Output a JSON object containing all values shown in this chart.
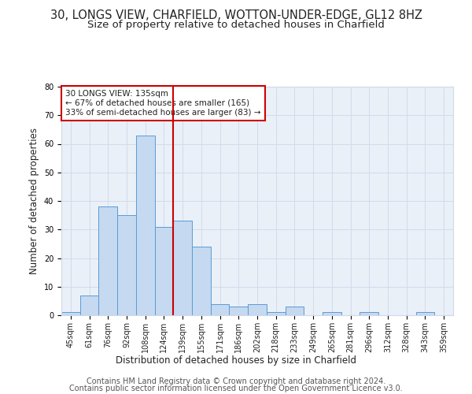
{
  "title_line1": "30, LONGS VIEW, CHARFIELD, WOTTON-UNDER-EDGE, GL12 8HZ",
  "title_line2": "Size of property relative to detached houses in Charfield",
  "xlabel": "Distribution of detached houses by size in Charfield",
  "ylabel": "Number of detached properties",
  "categories": [
    "45sqm",
    "61sqm",
    "76sqm",
    "92sqm",
    "108sqm",
    "124sqm",
    "139sqm",
    "155sqm",
    "171sqm",
    "186sqm",
    "202sqm",
    "218sqm",
    "233sqm",
    "249sqm",
    "265sqm",
    "281sqm",
    "296sqm",
    "312sqm",
    "328sqm",
    "343sqm",
    "359sqm"
  ],
  "values": [
    1,
    7,
    38,
    35,
    63,
    31,
    33,
    24,
    4,
    3,
    4,
    1,
    3,
    0,
    1,
    0,
    1,
    0,
    0,
    1,
    0
  ],
  "bar_color": "#c5d9f0",
  "bar_edge_color": "#5b9bd5",
  "vline_x": 5.5,
  "vline_color": "#cc0000",
  "ylim": [
    0,
    80
  ],
  "yticks": [
    0,
    10,
    20,
    30,
    40,
    50,
    60,
    70,
    80
  ],
  "annotation_text": "30 LONGS VIEW: 135sqm\n← 67% of detached houses are smaller (165)\n33% of semi-detached houses are larger (83) →",
  "annotation_box_color": "#cc0000",
  "footer_line1": "Contains HM Land Registry data © Crown copyright and database right 2024.",
  "footer_line2": "Contains public sector information licensed under the Open Government Licence v3.0.",
  "bg_color": "#ffffff",
  "grid_color": "#d0d8e8",
  "plot_bg_color": "#eaf0f8",
  "font_color": "#222222",
  "title_fontsize": 10.5,
  "subtitle_fontsize": 9.5,
  "axis_label_fontsize": 8.5,
  "tick_fontsize": 7,
  "footer_fontsize": 7,
  "annotation_fontsize": 7.5
}
